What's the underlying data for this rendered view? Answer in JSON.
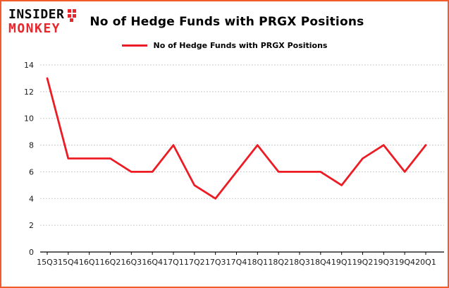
{
  "logo": {
    "line1": "INSIDER",
    "line2": "MONKEY"
  },
  "header": {
    "title": "No of Hedge Funds with PRGX Positions"
  },
  "chart_data": {
    "type": "line",
    "title": "No of Hedge Funds with PRGX Positions",
    "legend": "No of Hedge Funds with PRGX Positions",
    "legend_position": "top",
    "xlabel": "",
    "ylabel": "",
    "categories": [
      "15Q3",
      "15Q4",
      "16Q1",
      "16Q2",
      "16Q3",
      "16Q4",
      "17Q1",
      "17Q2",
      "17Q3",
      "17Q4",
      "18Q1",
      "18Q2",
      "18Q3",
      "18Q4",
      "19Q1",
      "19Q2",
      "19Q3",
      "19Q4",
      "20Q1"
    ],
    "values": [
      13,
      7,
      7,
      7,
      6,
      6,
      8,
      5,
      4,
      6,
      8,
      6,
      6,
      6,
      5,
      7,
      8,
      6,
      8
    ],
    "ylim": [
      0,
      14
    ],
    "yticks": [
      0,
      2,
      4,
      6,
      8,
      10,
      12,
      14
    ],
    "grid": true,
    "colors": {
      "line": "#ed1c24",
      "grid": "#bdbdbd",
      "axis": "#000000",
      "text": "#1a1a1a",
      "border": "#f25c2a",
      "background": "#ffffff"
    }
  }
}
